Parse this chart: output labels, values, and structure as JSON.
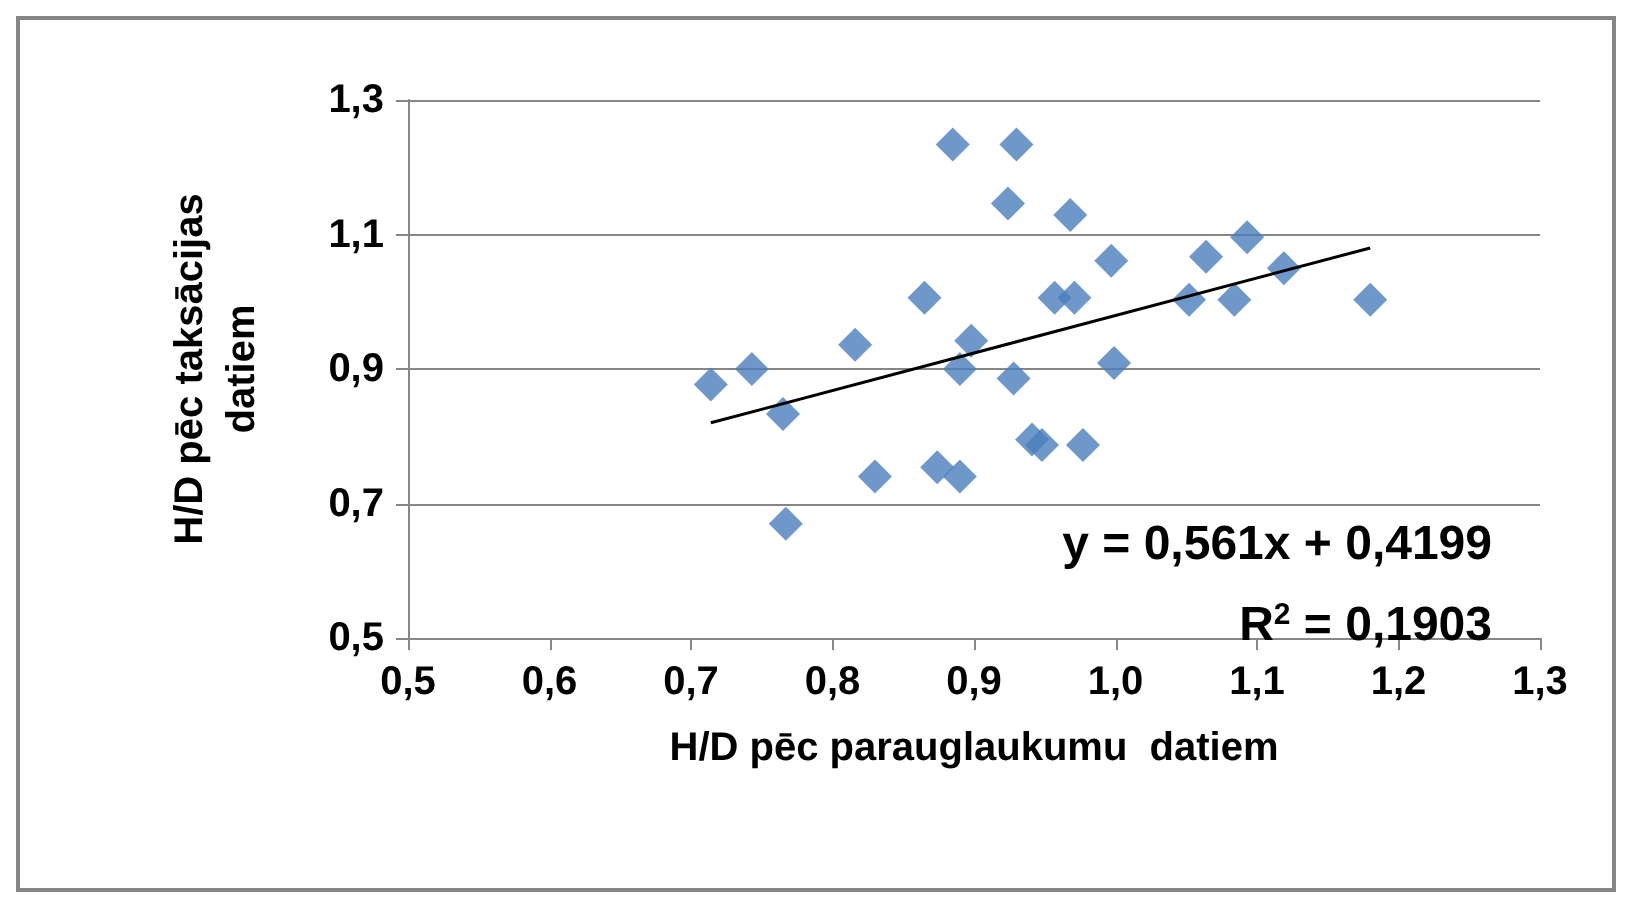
{
  "chart_data": {
    "type": "scatter",
    "xlabel": "H/D pēc parauglaukumu  datiem",
    "ylabel": "H/D pēc taksācijas\ndatiem",
    "xlim": [
      0.5,
      1.3
    ],
    "ylim": [
      0.5,
      1.3
    ],
    "xticks": [
      {
        "value": 0.5,
        "label": "0,5"
      },
      {
        "value": 0.6,
        "label": "0,6"
      },
      {
        "value": 0.7,
        "label": "0,7"
      },
      {
        "value": 0.8,
        "label": "0,8"
      },
      {
        "value": 0.9,
        "label": "0,9"
      },
      {
        "value": 1.0,
        "label": "1,0"
      },
      {
        "value": 1.1,
        "label": "1,1"
      },
      {
        "value": 1.2,
        "label": "1,2"
      },
      {
        "value": 1.3,
        "label": "1,3"
      }
    ],
    "yticks": [
      {
        "value": 0.5,
        "label": "0,5"
      },
      {
        "value": 0.7,
        "label": "0,7"
      },
      {
        "value": 0.9,
        "label": "0,9"
      },
      {
        "value": 1.1,
        "label": "1,1"
      },
      {
        "value": 1.3,
        "label": "1,3"
      }
    ],
    "grid": "y",
    "marker": "diamond",
    "series": [
      {
        "color": "#4a7ebb",
        "x": [
          0.714,
          0.743,
          0.765,
          0.767,
          0.816,
          0.83,
          0.865,
          0.874,
          0.885,
          0.89,
          0.898,
          0.895,
          0.89,
          0.93,
          0.924,
          0.928,
          0.941,
          0.948,
          0.977,
          0.957,
          0.971,
          0.968,
          0.997,
          0.999,
          1.052,
          1.064,
          1.084,
          1.093,
          1.119,
          1.18
        ],
        "values": [
          0.877,
          0.9,
          0.833,
          0.67,
          0.936,
          0.74,
          1.006,
          0.754,
          1.234,
          0.74,
          0.942,
          null,
          0.9,
          1.234,
          1.146,
          0.886,
          0.795,
          0.787,
          0.787,
          1.006,
          1.006,
          1.129,
          1.061,
          0.909,
          1.003,
          1.067,
          1.003,
          1.096,
          1.05,
          1.003
        ]
      },
      {
        "type": "line",
        "color": "#000000",
        "marker": "none",
        "line_style": "solid",
        "x": [
          0.714,
          1.18
        ],
        "values": [
          0.82,
          1.08
        ]
      }
    ],
    "annotations": [
      "y = 0,561x + 0,4199",
      "R$^{2}$ = 0,1903"
    ]
  }
}
